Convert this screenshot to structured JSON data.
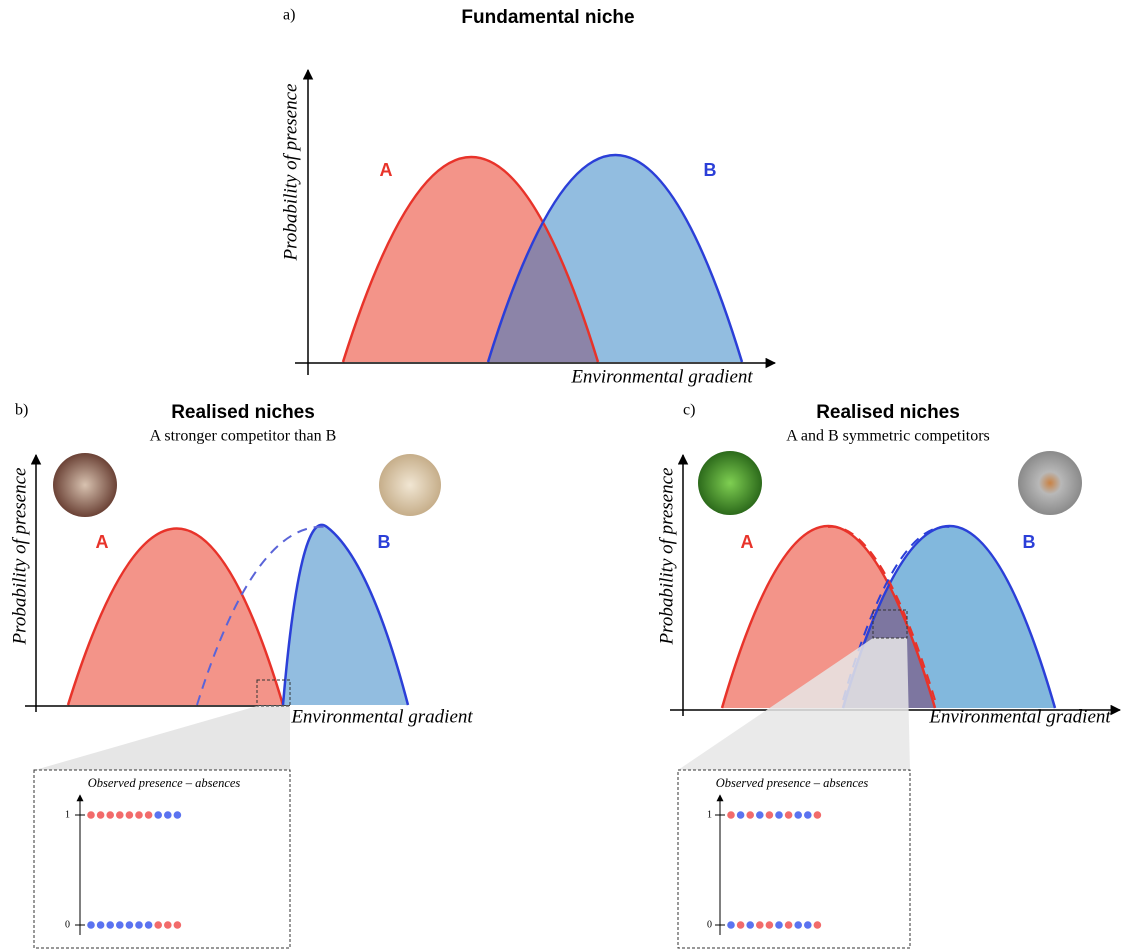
{
  "panel_a": {
    "label": "a)",
    "title": "Fundamental niche",
    "y_axis_label": "Probability of presence",
    "x_axis_label": "Environmental gradient",
    "curve_labels": [
      "A",
      "B"
    ]
  },
  "panel_b": {
    "label": "b)",
    "title": "Realised niches",
    "subtitle": "A stronger competitor than B",
    "y_axis_label": "Probability of presence",
    "x_axis_label": "Environmental gradient",
    "curve_labels": [
      "A",
      "B"
    ],
    "inset": {
      "title": "Observed presence – absences",
      "ticks": [
        "1",
        "0"
      ]
    }
  },
  "panel_c": {
    "label": "c)",
    "title": "Realised niches",
    "subtitle": "A and B symmetric competitors",
    "y_axis_label": "Probability of presence",
    "x_axis_label": "Environmental gradient",
    "curve_labels": [
      "A",
      "B"
    ],
    "inset": {
      "title": "Observed presence – absences",
      "ticks": [
        "1",
        "0"
      ]
    }
  }
}
